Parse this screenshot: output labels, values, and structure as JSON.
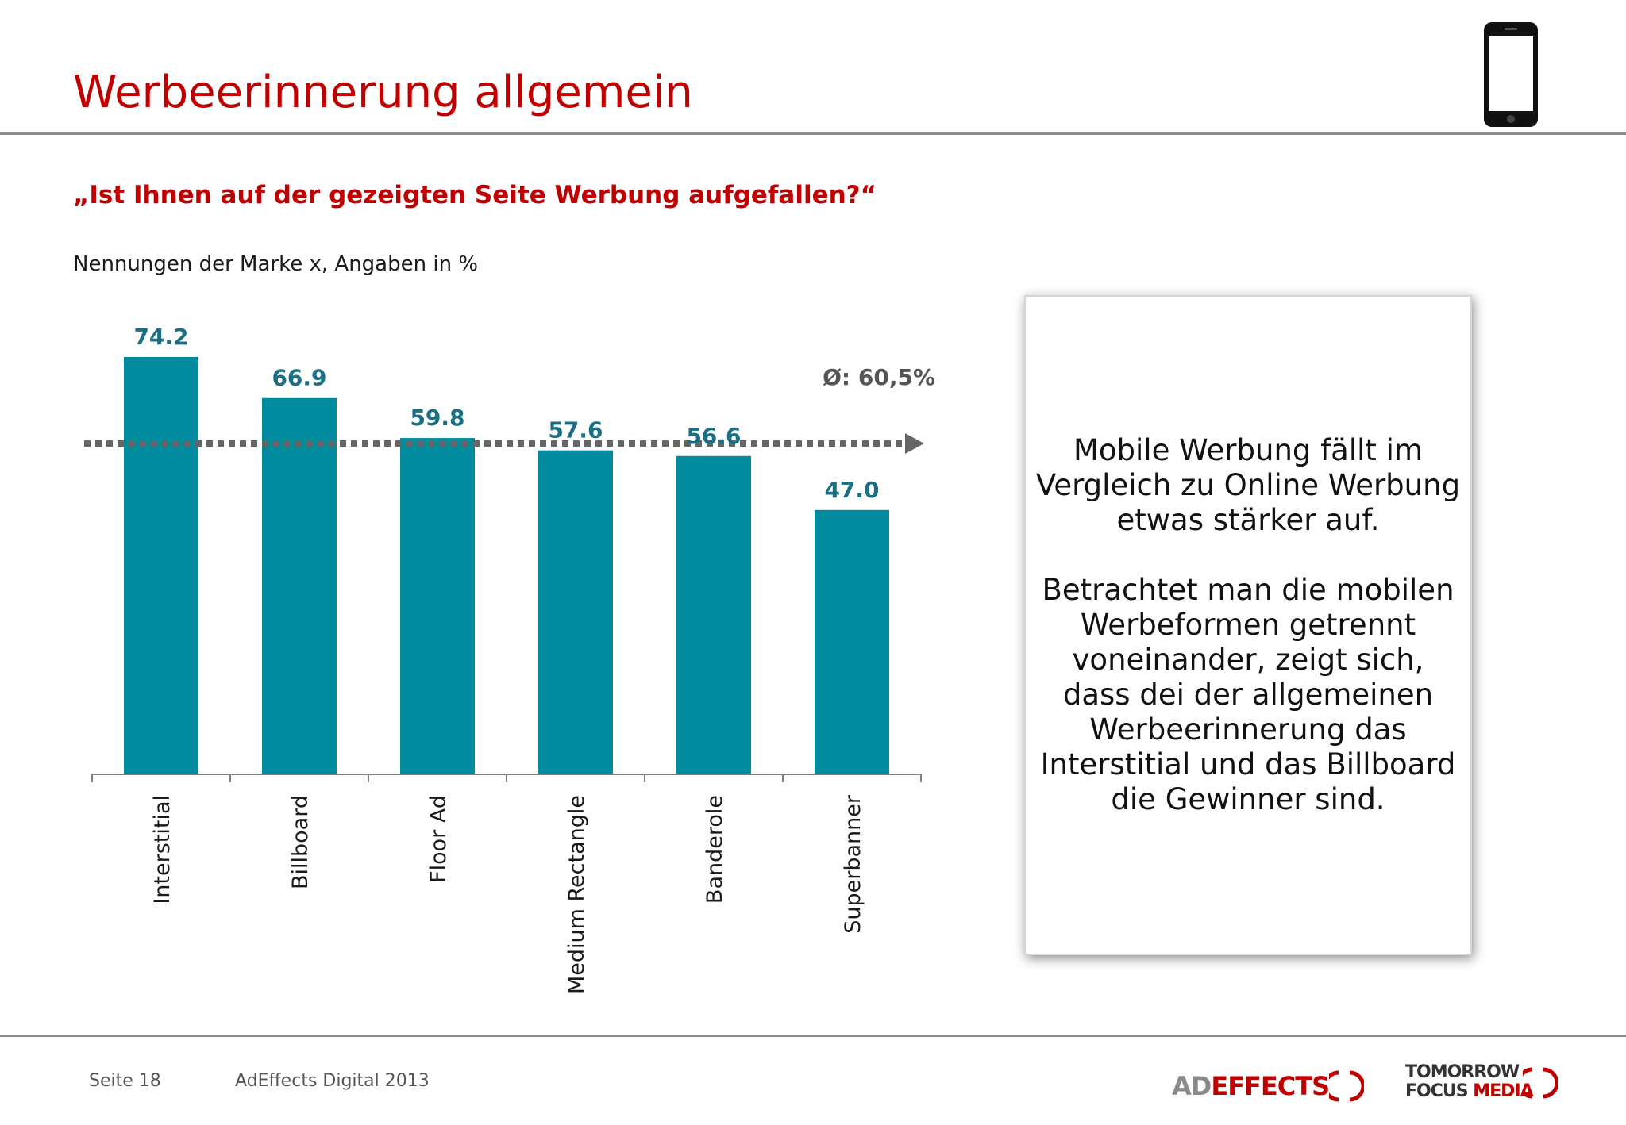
{
  "header": {
    "title": "Werbeerinnerung allgemein"
  },
  "question": "„Ist Ihnen auf der gezeigten Seite Werbung aufgefallen?“",
  "subtitle": "Nennungen der Marke x, Angaben in %",
  "average_label": "Ø: 60,5%",
  "chart_data": {
    "type": "bar",
    "categories": [
      "Interstitial",
      "Billboard",
      "Floor Ad",
      "Medium Rectangle",
      "Banderole",
      "Superbanner"
    ],
    "values": [
      74.2,
      66.9,
      59.8,
      57.6,
      56.6,
      47.0
    ],
    "value_labels": [
      "74.2",
      "66.9",
      "59.8",
      "57.6",
      "56.6",
      "47.0"
    ],
    "average": 60.5,
    "ylim": [
      0,
      80
    ],
    "grid": false,
    "bar_color": "#008b9e",
    "label_color": "#1a6f85"
  },
  "infobox": {
    "paragraph1": "Mobile Werbung fällt im Vergleich zu Online Werbung etwas stärker auf.",
    "paragraph2": "Betrachtet man die mobilen Werbeformen getrennt voneinander, zeigt sich, dass dei der allgemeinen Werbeerinnerung das Interstitial und das Billboard die Gewinner sind."
  },
  "footer": {
    "page": "Seite 18",
    "document": "AdEffects Digital 2013"
  },
  "logos": {
    "adeffects_ad": "AD",
    "adeffects_effects": "EFFECTS",
    "tomorrow": "TOMORROW",
    "focus": "FOCUS",
    "media": "MEDIA"
  },
  "icons": {
    "device": "smartphone-icon"
  },
  "colors": {
    "title_red": "#c00000",
    "bar_teal": "#008b9e"
  }
}
